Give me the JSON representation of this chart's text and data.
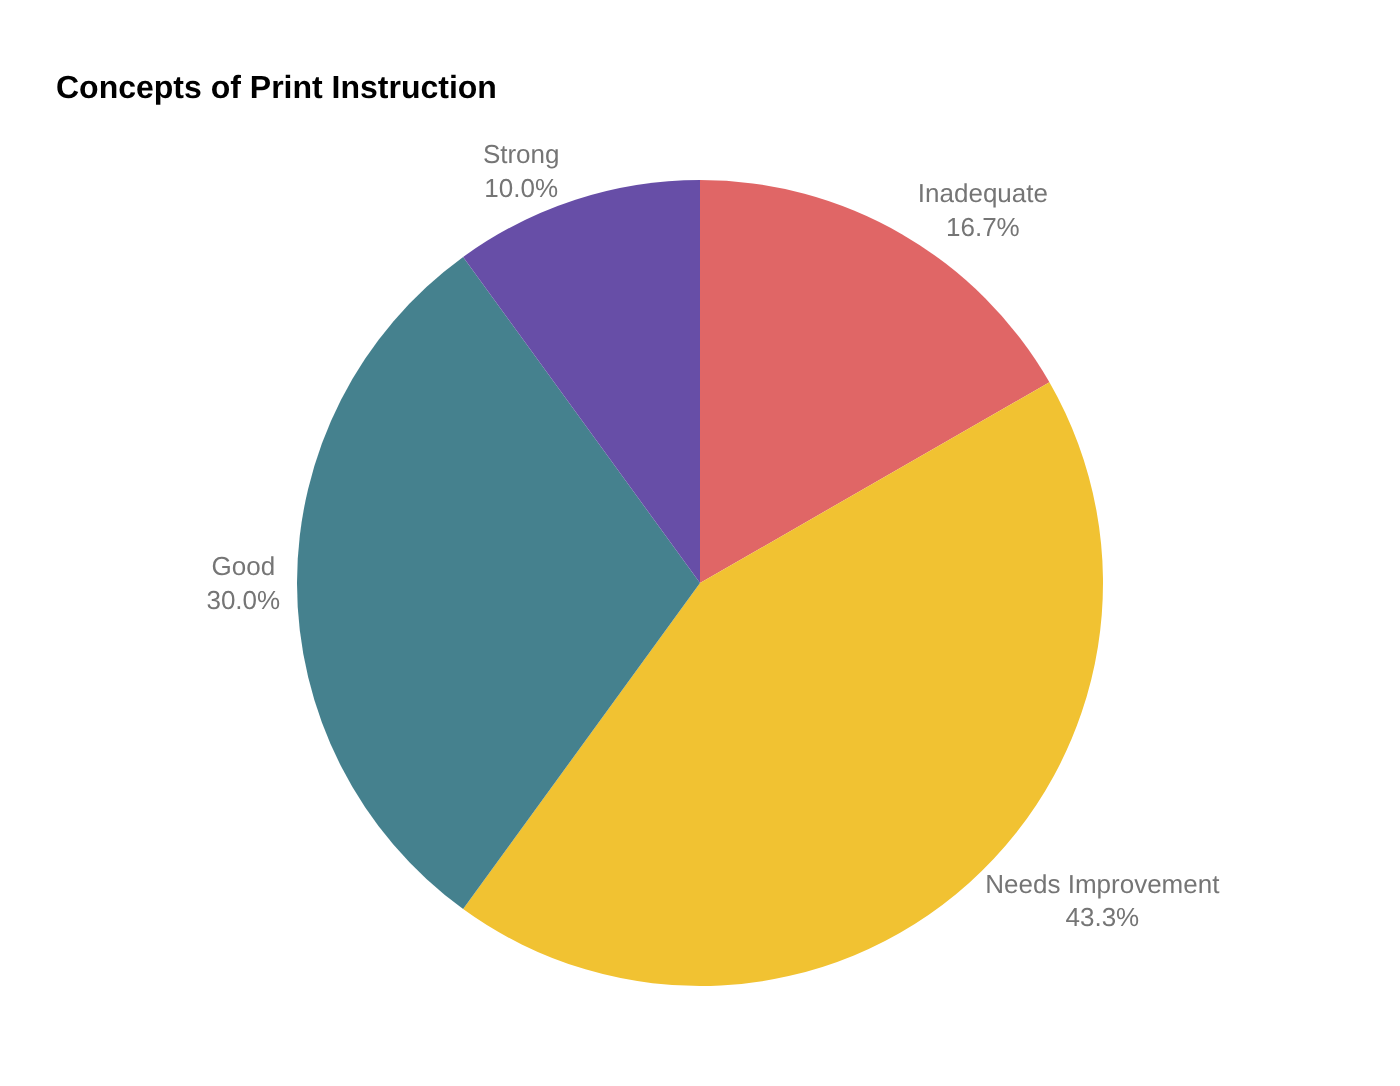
{
  "chart_data": {
    "type": "pie",
    "title": "Concepts of Print Instruction",
    "categories": [
      "Inadequate",
      "Needs Improvement",
      "Good",
      "Strong"
    ],
    "values": [
      16.7,
      43.3,
      30.0,
      10.0
    ],
    "value_labels": [
      "16.7%",
      "43.3%",
      "30.0%",
      "10.0%"
    ],
    "colors": [
      "#e06666",
      "#f1c232",
      "#45818e",
      "#674ea7"
    ],
    "legend": false
  }
}
